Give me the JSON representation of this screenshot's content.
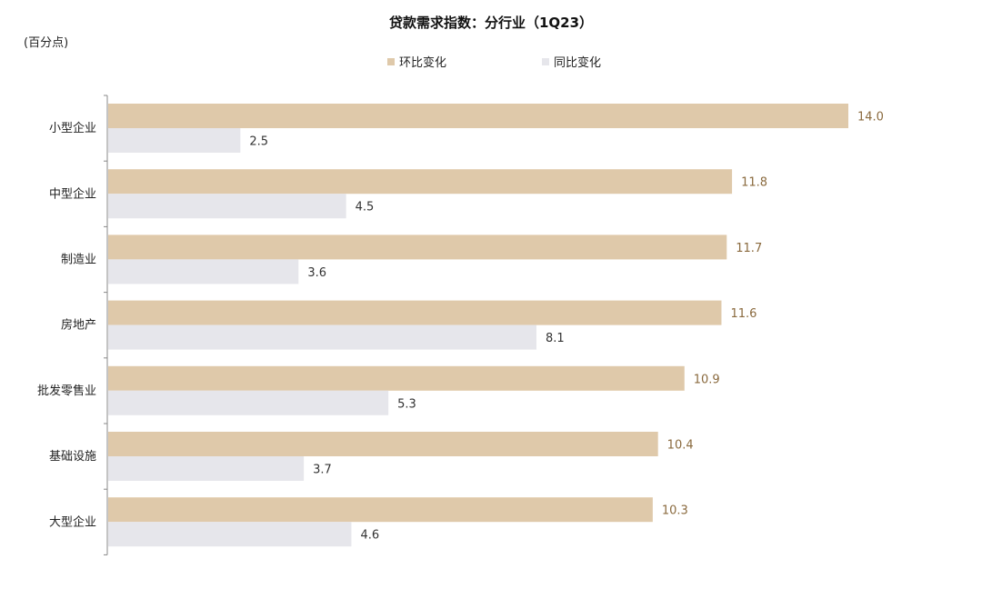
{
  "chart_data": {
    "type": "bar",
    "orientation": "horizontal",
    "title": "贷款需求指数：分行业（1Q23）",
    "unit": "(百分点)",
    "categories": [
      "小型企业",
      "中型企业",
      "制造业",
      "房地产",
      "批发零售业",
      "基础设施",
      "大型企业"
    ],
    "series": [
      {
        "name": "环比变化",
        "color": "#dfc9aa",
        "label_color": "#8a6a3e",
        "values": [
          14.0,
          11.8,
          11.7,
          11.6,
          10.9,
          10.4,
          10.3
        ]
      },
      {
        "name": "同比变化",
        "color": "#e6e6eb",
        "label_color": "#333333",
        "values": [
          2.5,
          4.5,
          3.6,
          8.1,
          5.3,
          3.7,
          4.6
        ]
      }
    ],
    "xlim": [
      0,
      14.0
    ],
    "legend": "top-center",
    "grid": false
  }
}
